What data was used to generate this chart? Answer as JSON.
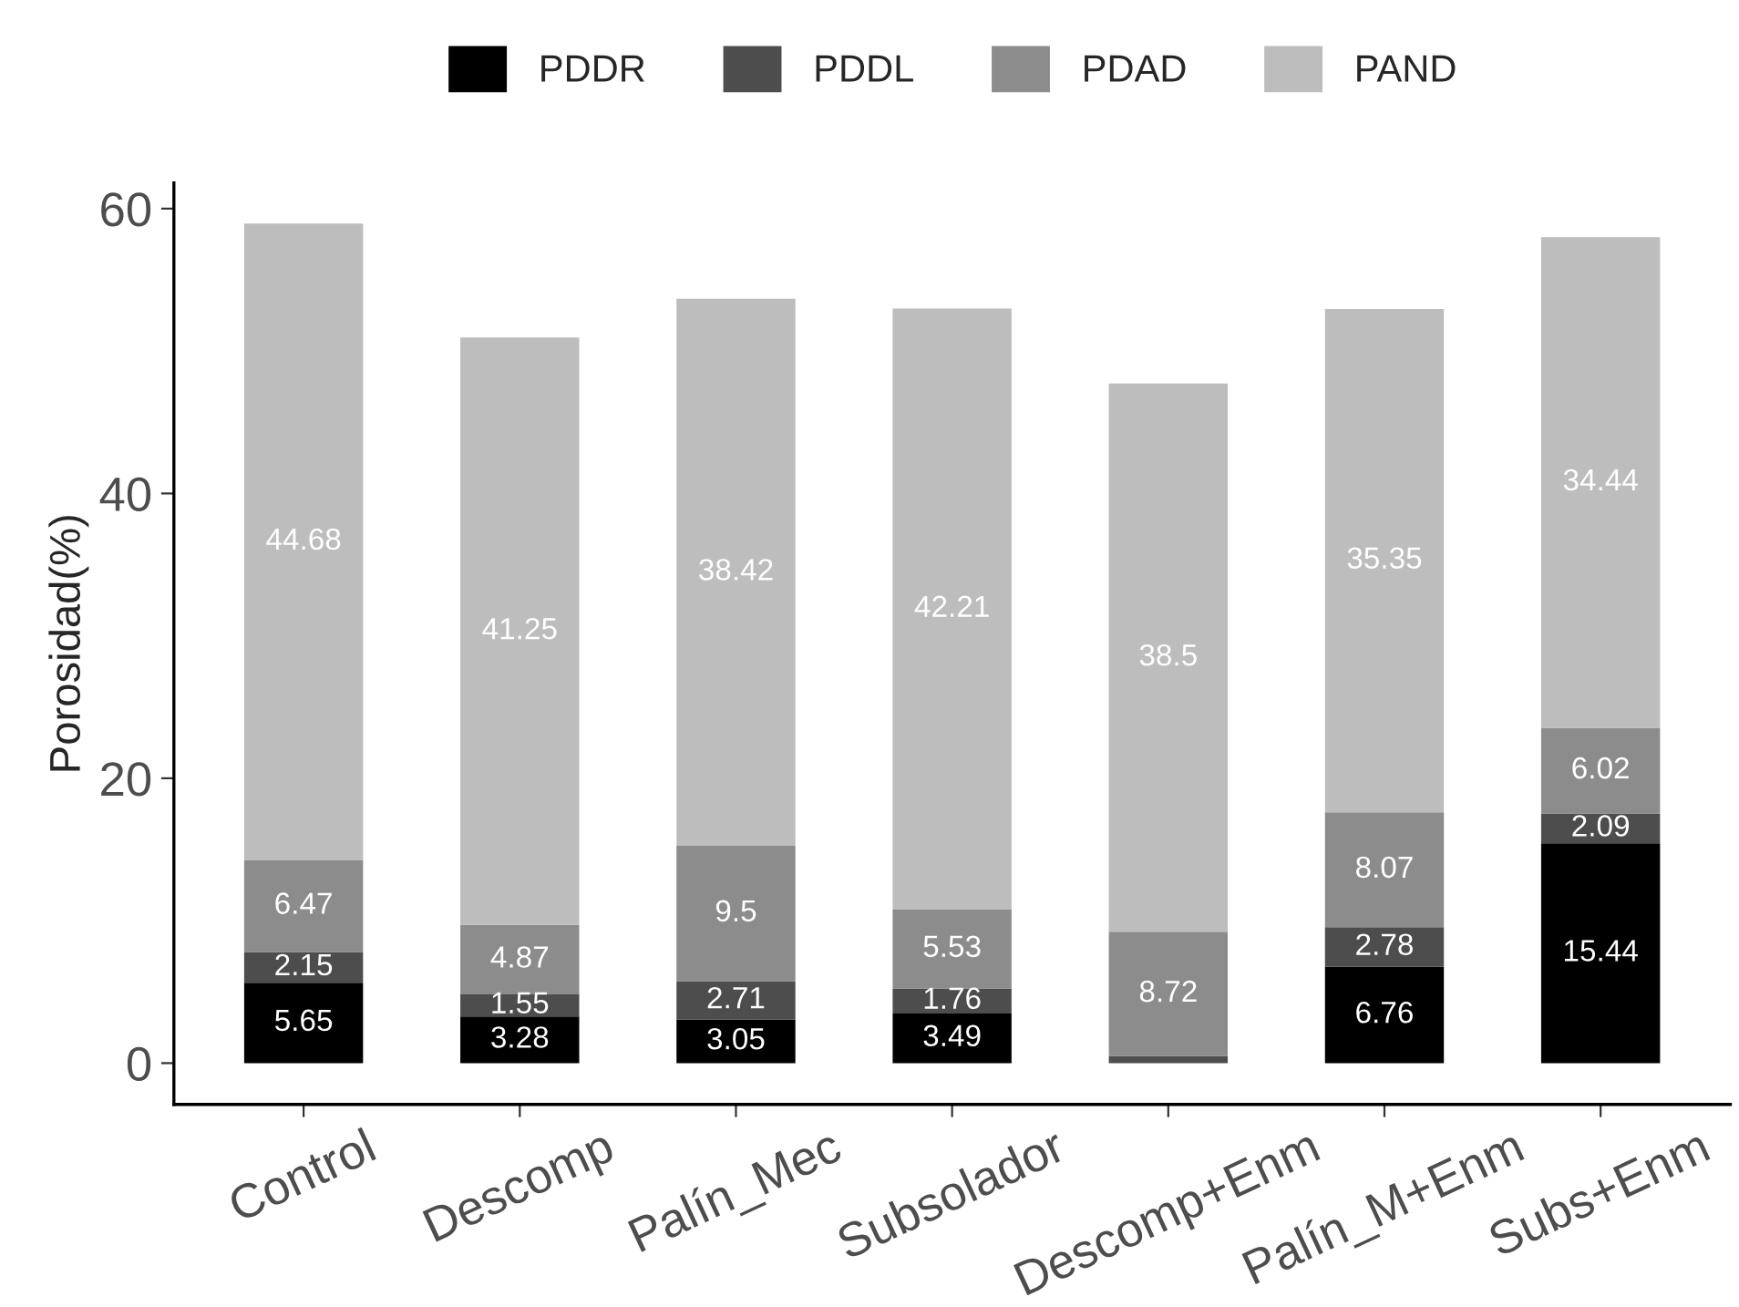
{
  "chart_data": {
    "type": "bar",
    "stacked": true,
    "ylabel": "Porosidad(%)",
    "categories": [
      "Control",
      "Descomp",
      "Palín_Mec",
      "Subsolador",
      "Descomp+Enm",
      "Palín_M+Enm",
      "Subs+Enm"
    ],
    "series": [
      {
        "name": "PDDR",
        "color": "#000000",
        "values": [
          5.65,
          3.28,
          3.05,
          3.49,
          null,
          6.76,
          15.44
        ],
        "value_labels": [
          "5.65",
          "3.28",
          "3.05",
          "3.49",
          null,
          "6.76",
          "15.44"
        ]
      },
      {
        "name": "PDDL",
        "color": "#4d4d4d",
        "values": [
          2.15,
          1.55,
          2.71,
          1.76,
          0.5,
          2.78,
          2.09
        ],
        "value_labels": [
          "2.15",
          "1.55",
          "2.71",
          "1.76",
          null,
          "2.78",
          "2.09"
        ]
      },
      {
        "name": "PDAD",
        "color": "#8c8c8c",
        "values": [
          6.47,
          4.87,
          9.5,
          5.53,
          8.72,
          8.07,
          6.02
        ],
        "value_labels": [
          "6.47",
          "4.87",
          "9.5",
          "5.53",
          "8.72",
          "8.07",
          "6.02"
        ]
      },
      {
        "name": "PAND",
        "color": "#bdbdbd",
        "values": [
          44.68,
          41.25,
          38.42,
          42.21,
          38.5,
          35.35,
          34.44
        ],
        "value_labels": [
          "44.68",
          "41.25",
          "38.42",
          "42.21",
          "38.5",
          "35.35",
          "34.44"
        ]
      }
    ],
    "ylim": [
      -2.9,
      61.8
    ],
    "yticks": [
      0,
      20,
      40,
      60
    ],
    "grid": false,
    "legend": "top"
  }
}
